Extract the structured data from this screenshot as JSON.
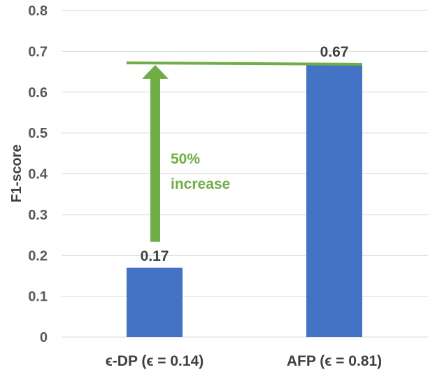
{
  "chart_data": {
    "type": "bar",
    "categories": [
      "ϵ-DP (ϵ = 0.14)",
      "AFP (ϵ = 0.81)"
    ],
    "values": [
      0.17,
      0.67
    ],
    "data_labels": [
      "0.17",
      "0.67"
    ],
    "ylabel": "F1-score",
    "ylim": [
      0,
      0.8
    ],
    "yticks": [
      "0",
      "0.1",
      "0.2",
      "0.3",
      "0.4",
      "0.5",
      "0.6",
      "0.7",
      "0.8"
    ],
    "grid": true,
    "bar_color": "#4472C4",
    "annotation": {
      "text_line1": "50%",
      "text_line2": "increase",
      "color": "#70AD47",
      "from_value": 0.17,
      "to_value": 0.67
    }
  }
}
